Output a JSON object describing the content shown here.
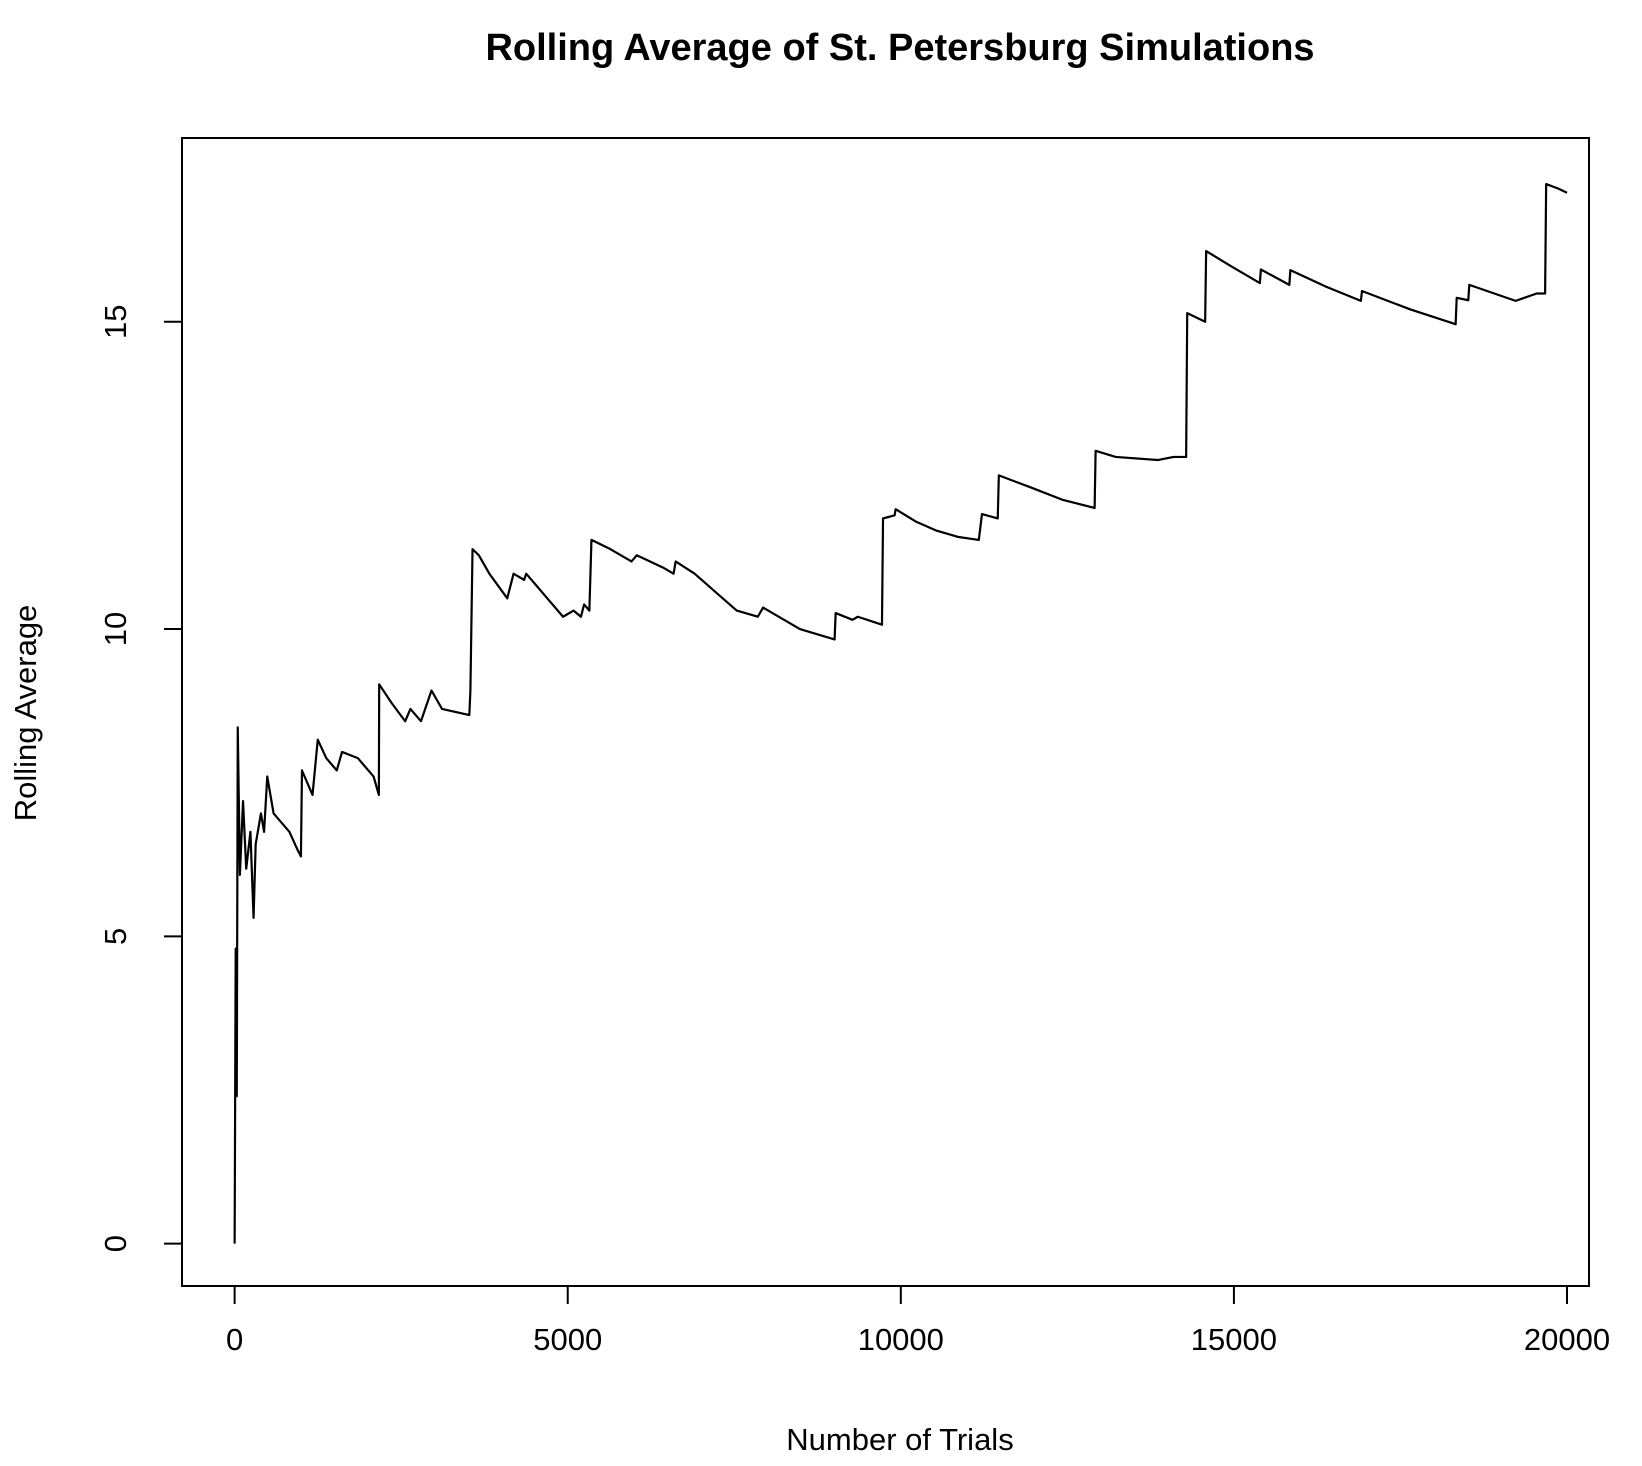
{
  "chart_data": {
    "type": "line",
    "title": "Rolling Average of St. Petersburg Simulations",
    "x_label": "Number of Trials",
    "y_label": "Rolling Average",
    "color": "#000000",
    "x": [
      0,
      16,
      32,
      47,
      79,
      126,
      174,
      237,
      284,
      316,
      395,
      442,
      490,
      585,
      664,
      822,
      948,
      995,
      1011,
      1090,
      1169,
      1248,
      1375,
      1533,
      1612,
      1849,
      2086,
      2165,
      2170,
      2354,
      2560,
      2639,
      2797,
      2955,
      3113,
      3523,
      3539,
      3571,
      3666,
      3824,
      4092,
      4187,
      4345,
      4377,
      4535,
      4693,
      4930,
      5088,
      5198,
      5246,
      5325,
      5356,
      5641,
      5957,
      6036,
      6431,
      6589,
      6620,
      6905,
      7221,
      7537,
      7853,
      7932,
      8485,
      9006,
      9022,
      9275,
      9354,
      9717,
      9733,
      9907,
      9922,
      10223,
      10539,
      10855,
      11171,
      11218,
      11455,
      11471,
      11961,
      12435,
      12909,
      12924,
      13225,
      13857,
      14094,
      14283,
      14299,
      14568,
      14583,
      14963,
      15389,
      15405,
      15832,
      15847,
      16385,
      16906,
      16922,
      17649,
      18328,
      18344,
      18518,
      18533,
      19229,
      19545,
      19671,
      19687,
      19861,
      20000
    ],
    "values": [
      0,
      4.8,
      2.4,
      8.4,
      6.0,
      7.2,
      6.1,
      6.7,
      5.3,
      6.5,
      7.0,
      6.7,
      7.6,
      7.0,
      6.9,
      6.7,
      6.4,
      6.3,
      7.7,
      7.5,
      7.3,
      8.2,
      7.9,
      7.7,
      8.0,
      7.9,
      7.6,
      7.3,
      9.1,
      8.8,
      8.5,
      8.7,
      8.5,
      9.0,
      8.7,
      8.6,
      9.0,
      11.3,
      11.2,
      10.9,
      10.5,
      10.9,
      10.8,
      10.9,
      10.7,
      10.5,
      10.2,
      10.3,
      10.2,
      10.4,
      10.3,
      11.45,
      11.3,
      11.1,
      11.2,
      11.0,
      10.9,
      11.1,
      10.9,
      10.6,
      10.3,
      10.2,
      10.35,
      10.0,
      9.83,
      10.26,
      10.15,
      10.2,
      10.07,
      11.8,
      11.85,
      11.95,
      11.75,
      11.6,
      11.5,
      11.45,
      11.87,
      11.8,
      12.5,
      12.3,
      12.1,
      11.97,
      12.9,
      12.8,
      12.75,
      12.8,
      12.8,
      15.14,
      15.0,
      16.15,
      15.9,
      15.63,
      15.85,
      15.6,
      15.84,
      15.57,
      15.34,
      15.5,
      15.2,
      14.96,
      15.39,
      15.35,
      15.6,
      15.34,
      15.46,
      15.46,
      17.24,
      17.17,
      17.1
    ],
    "xlim": [
      -790,
      20330
    ],
    "ylim": [
      -0.69,
      17.99
    ],
    "xticks": [
      0,
      5000,
      10000,
      15000,
      20000
    ],
    "yticks": [
      0,
      5,
      10,
      15
    ]
  }
}
